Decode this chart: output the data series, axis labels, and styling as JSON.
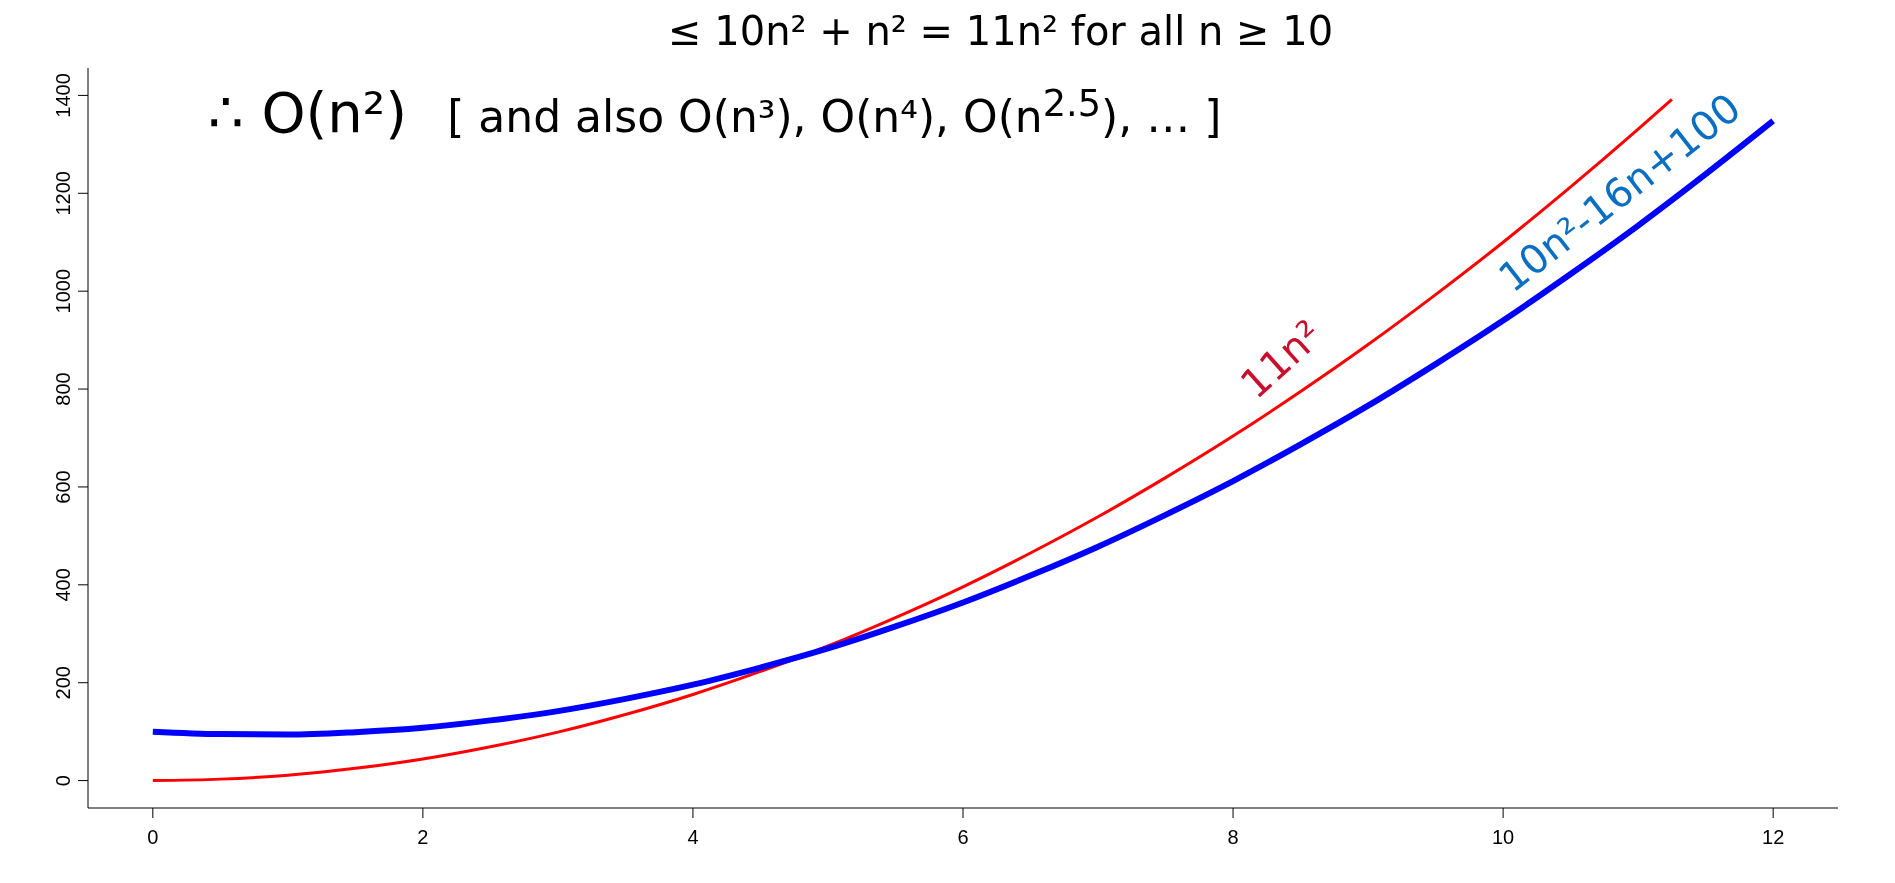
{
  "chart_data": {
    "type": "line",
    "annotations": [
      "≤ 10n² + n² = 11n² for all n ≥ 10",
      "∴ O(n²)",
      "[ and also O(n³), O(n⁴), O(n$^{2.5}$), … ]"
    ],
    "series": [
      {
        "name": "11n²",
        "color": "#ff0000",
        "x": [
          0,
          0.5,
          1,
          1.5,
          2,
          2.5,
          3,
          3.5,
          4,
          4.5,
          5,
          5.5,
          6,
          6.5,
          7,
          7.5,
          8,
          8.5,
          9,
          9.5,
          10,
          10.5,
          11,
          11.25
        ],
        "values": [
          0,
          3,
          11,
          25,
          44,
          69,
          99,
          135,
          176,
          223,
          275,
          333,
          396,
          465,
          539,
          619,
          704,
          795,
          891,
          993,
          1100,
          1213,
          1331,
          1392
        ]
      },
      {
        "name": "10n²-16n+100",
        "color": "#0000ff",
        "x": [
          0,
          0.5,
          1,
          1.5,
          2,
          2.5,
          3,
          3.5,
          4,
          4.5,
          5,
          5.5,
          6,
          6.5,
          7,
          7.5,
          8,
          8.5,
          9,
          9.5,
          10,
          10.5,
          11,
          11.5,
          12
        ],
        "values": [
          100,
          95,
          94,
          99,
          108,
          123,
          142,
          167,
          196,
          231,
          270,
          315,
          364,
          419,
          478,
          543,
          612,
          687,
          766,
          851,
          940,
          1035,
          1134,
          1239,
          1348
        ]
      }
    ],
    "xlim": [
      -0.48,
      12.48
    ],
    "xticks": [
      0,
      2,
      4,
      6,
      8,
      10,
      12
    ],
    "ylim": [
      -56,
      1456
    ],
    "yticks": [
      0,
      200,
      400,
      600,
      800,
      1000,
      1200,
      1400
    ],
    "grid": false,
    "legend": false,
    "marker": "none",
    "line_style": "solid"
  }
}
